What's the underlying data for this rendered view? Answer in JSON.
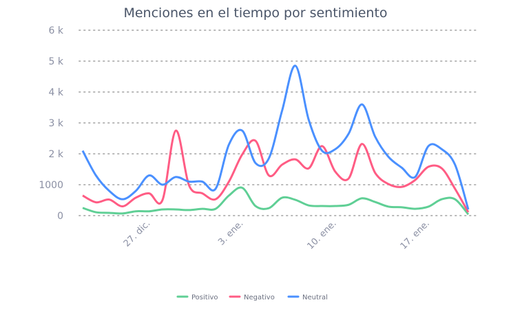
{
  "chart_data": {
    "type": "line",
    "title": "Menciones en el tiempo por sentimiento",
    "xlabel": "",
    "ylabel": "",
    "ylim": [
      0,
      6000
    ],
    "y_ticks": [
      0,
      1000,
      2000,
      3000,
      4000,
      5000,
      6000
    ],
    "y_tick_labels": [
      "0",
      "1000",
      "2 k",
      "3 k",
      "4 k",
      "5 k",
      "6 k"
    ],
    "x_ticks": [
      {
        "index": 5,
        "label": "27. dic."
      },
      {
        "index": 12,
        "label": "3. ene."
      },
      {
        "index": 19,
        "label": "10. ene."
      },
      {
        "index": 26,
        "label": "17. ene."
      }
    ],
    "grid": true,
    "legend_position": "bottom",
    "series": [
      {
        "name": "Positivo",
        "color": "#5fcf95",
        "values": [
          250,
          110,
          90,
          70,
          140,
          140,
          200,
          200,
          180,
          220,
          220,
          650,
          900,
          310,
          240,
          580,
          510,
          330,
          310,
          310,
          350,
          560,
          440,
          290,
          270,
          220,
          290,
          530,
          530,
          40
        ]
      },
      {
        "name": "Negativo",
        "color": "#ff5c84",
        "values": [
          650,
          430,
          520,
          300,
          580,
          720,
          500,
          2750,
          980,
          720,
          530,
          1100,
          1980,
          2420,
          1300,
          1650,
          1820,
          1530,
          2250,
          1420,
          1200,
          2320,
          1380,
          1020,
          930,
          1150,
          1580,
          1530,
          870,
          110
        ]
      },
      {
        "name": "Neutral",
        "color": "#4a90ff",
        "values": [
          2100,
          1300,
          800,
          530,
          800,
          1300,
          1000,
          1250,
          1100,
          1100,
          870,
          2300,
          2750,
          1700,
          1850,
          3400,
          4850,
          3100,
          2100,
          2150,
          2650,
          3600,
          2550,
          1900,
          1550,
          1250,
          2250,
          2150,
          1650,
          200
        ]
      }
    ]
  }
}
